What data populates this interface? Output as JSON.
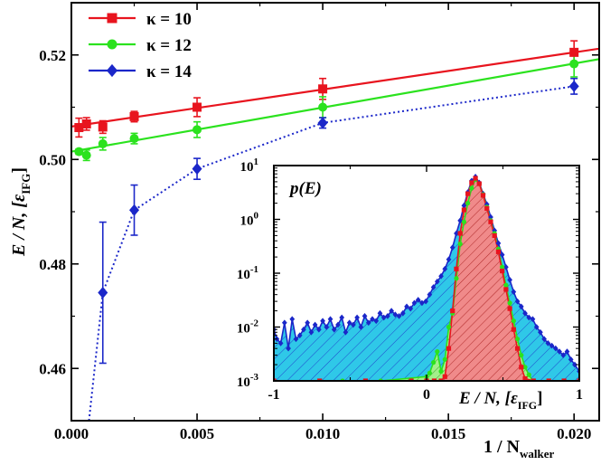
{
  "chart_data": [
    {
      "type": "scatter",
      "xlabel": "1 / N",
      "xlabel_sub": "walker",
      "ylabel": "E / N, [ε",
      "ylabel_sub": "IFG",
      "ylabel_close": "]",
      "xlim": [
        0.0,
        0.021
      ],
      "ylim": [
        0.45,
        0.53
      ],
      "xticks": [
        0.0,
        0.005,
        0.01,
        0.015,
        0.02
      ],
      "xtick_labels": [
        "0.000",
        "0.005",
        "0.010",
        "0.015",
        "0.020"
      ],
      "yticks": [
        0.46,
        0.48,
        0.5,
        0.52
      ],
      "ytick_labels": [
        "0.46",
        "0.48",
        "0.50",
        "0.52"
      ],
      "legend_position": "top-left",
      "series": [
        {
          "name": "κ = 10",
          "color": "#e8141e",
          "marker": "square",
          "x": [
            0.0003,
            0.0006,
            0.00125,
            0.0025,
            0.005,
            0.01,
            0.02
          ],
          "y": [
            0.5061,
            0.5068,
            0.5062,
            0.5082,
            0.51,
            0.5135,
            0.5205
          ],
          "err": [
            0.0018,
            0.0012,
            0.0012,
            0.001,
            0.0018,
            0.002,
            0.0022
          ],
          "fit": {
            "style": "solid",
            "x": [
              0.0,
              0.021
            ],
            "y": [
              0.5063,
              0.5212
            ]
          }
        },
        {
          "name": "κ = 12",
          "color": "#2be21e",
          "marker": "circle",
          "x": [
            0.0003,
            0.0006,
            0.00125,
            0.0025,
            0.005,
            0.01,
            0.02
          ],
          "y": [
            0.5015,
            0.5008,
            0.503,
            0.504,
            0.5057,
            0.51,
            0.5183
          ],
          "err": [
            0.0005,
            0.001,
            0.0012,
            0.001,
            0.0015,
            0.002,
            0.0025
          ],
          "fit": {
            "style": "solid",
            "x": [
              0.0,
              0.021
            ],
            "y": [
              0.5015,
              0.5192
            ]
          }
        },
        {
          "name": "κ = 14",
          "color": "#1b27c9",
          "marker": "diamond",
          "x": [
            0.00125,
            0.0025,
            0.005,
            0.01,
            0.02
          ],
          "y": [
            0.4745,
            0.4903,
            0.4982,
            0.507,
            0.514
          ],
          "err": [
            0.0135,
            0.0048,
            0.002,
            0.001,
            0.0015
          ],
          "fit": {
            "style": "dotted",
            "x": [
              0.0007,
              0.00125,
              0.0025,
              0.005,
              0.01,
              0.02
            ],
            "y": [
              0.45,
              0.4745,
              0.4903,
              0.4982,
              0.507,
              0.514
            ]
          }
        }
      ]
    },
    {
      "type": "area",
      "ylabel": "p(E)",
      "xlabel": "E / N, [ε",
      "xlabel_sub": "IFG",
      "xlabel_close": "]",
      "xlim": [
        -1,
        1
      ],
      "ylim_log10": [
        -3,
        1
      ],
      "y_scale": "log",
      "xticks": [
        -1,
        0,
        1
      ],
      "xtick_labels": [
        "-1",
        "0",
        "1"
      ],
      "yticks_exp": [
        -3,
        -2,
        -1,
        0,
        1
      ],
      "ytick_base": "10",
      "ytick_exps": [
        "-3",
        "-2",
        "-1",
        "0",
        "1"
      ],
      "series": [
        {
          "name_ref": "κ = 14",
          "color": "#1b27c9",
          "fill": "#2fc8e8",
          "hatch": "diagonal",
          "marker": "diamond",
          "x": [
            -1.0,
            -0.98,
            -0.955,
            -0.93,
            -0.905,
            -0.88,
            -0.855,
            -0.83,
            -0.805,
            -0.78,
            -0.755,
            -0.73,
            -0.705,
            -0.68,
            -0.655,
            -0.63,
            -0.605,
            -0.58,
            -0.555,
            -0.53,
            -0.505,
            -0.48,
            -0.455,
            -0.43,
            -0.405,
            -0.38,
            -0.355,
            -0.33,
            -0.305,
            -0.28,
            -0.255,
            -0.23,
            -0.205,
            -0.18,
            -0.155,
            -0.13,
            -0.105,
            -0.08,
            -0.055,
            -0.03,
            -0.005,
            0.02,
            0.045,
            0.07,
            0.095,
            0.12,
            0.145,
            0.17,
            0.195,
            0.22,
            0.245,
            0.27,
            0.295,
            0.32,
            0.345,
            0.37,
            0.395,
            0.42,
            0.445,
            0.47,
            0.495,
            0.52,
            0.545,
            0.57,
            0.595,
            0.62,
            0.645,
            0.67,
            0.695,
            0.72,
            0.745,
            0.77,
            0.795,
            0.82,
            0.845,
            0.87,
            0.895,
            0.92,
            0.945,
            0.97,
            1.0
          ],
          "y": [
            0.009,
            0.006,
            0.005,
            0.012,
            0.004,
            0.014,
            0.006,
            0.007,
            0.009,
            0.012,
            0.008,
            0.011,
            0.009,
            0.013,
            0.01,
            0.014,
            0.009,
            0.011,
            0.015,
            0.008,
            0.012,
            0.011,
            0.015,
            0.01,
            0.016,
            0.012,
            0.014,
            0.013,
            0.018,
            0.015,
            0.016,
            0.02,
            0.017,
            0.016,
            0.018,
            0.024,
            0.022,
            0.028,
            0.032,
            0.028,
            0.03,
            0.04,
            0.055,
            0.07,
            0.088,
            0.12,
            0.18,
            0.3,
            0.55,
            0.95,
            1.8,
            3.2,
            5.2,
            6.2,
            4.8,
            3.0,
            1.9,
            1.1,
            0.62,
            0.36,
            0.22,
            0.13,
            0.075,
            0.045,
            0.03,
            0.024,
            0.018,
            0.015,
            0.014,
            0.01,
            0.008,
            0.006,
            0.005,
            0.0045,
            0.004,
            0.0035,
            0.003,
            0.0035,
            0.0025,
            0.002,
            0.0015
          ]
        },
        {
          "name_ref": "κ = 12",
          "color": "#2be21e",
          "fill": "#a3f08a",
          "hatch": "diagonal",
          "marker": "circle",
          "x": [
            -0.55,
            -0.3,
            0.0,
            0.02,
            0.045,
            0.07,
            0.095,
            0.12,
            0.145,
            0.17,
            0.195,
            0.22,
            0.245,
            0.27,
            0.295,
            0.32,
            0.345,
            0.37,
            0.395,
            0.42,
            0.445,
            0.47,
            0.495,
            0.52,
            0.545,
            0.57,
            0.595,
            0.62,
            0.645,
            0.67,
            0.695
          ],
          "y": [
            0.001,
            0.001,
            0.0012,
            0.0014,
            0.0022,
            0.0035,
            0.0015,
            0.0025,
            0.01,
            0.018,
            0.08,
            0.35,
            0.9,
            2.0,
            3.8,
            5.5,
            4.6,
            2.9,
            1.7,
            0.95,
            0.55,
            0.28,
            0.13,
            0.06,
            0.028,
            0.013,
            0.006,
            0.003,
            0.0018,
            0.0013,
            0.001
          ]
        },
        {
          "name_ref": "κ = 10",
          "color": "#e8141e",
          "fill": "#f08a8a",
          "hatch": "diagonal",
          "marker": "square",
          "x": [
            -1.0,
            -0.7,
            -0.4,
            -0.1,
            0.0,
            0.05,
            0.095,
            0.12,
            0.145,
            0.17,
            0.195,
            0.22,
            0.245,
            0.27,
            0.295,
            0.32,
            0.345,
            0.37,
            0.395,
            0.42,
            0.445,
            0.47,
            0.495,
            0.52,
            0.545,
            0.57,
            0.595,
            0.62,
            0.645,
            0.7,
            0.8,
            0.9,
            1.0
          ],
          "y": [
            0.001,
            0.001,
            0.001,
            0.001,
            0.001,
            0.001,
            0.001,
            0.0012,
            0.004,
            0.02,
            0.12,
            0.55,
            1.5,
            3.0,
            4.8,
            5.8,
            4.6,
            2.8,
            1.6,
            0.9,
            0.5,
            0.25,
            0.11,
            0.05,
            0.022,
            0.009,
            0.004,
            0.0018,
            0.0011,
            0.001,
            0.001,
            0.001,
            0.001
          ]
        }
      ]
    }
  ]
}
